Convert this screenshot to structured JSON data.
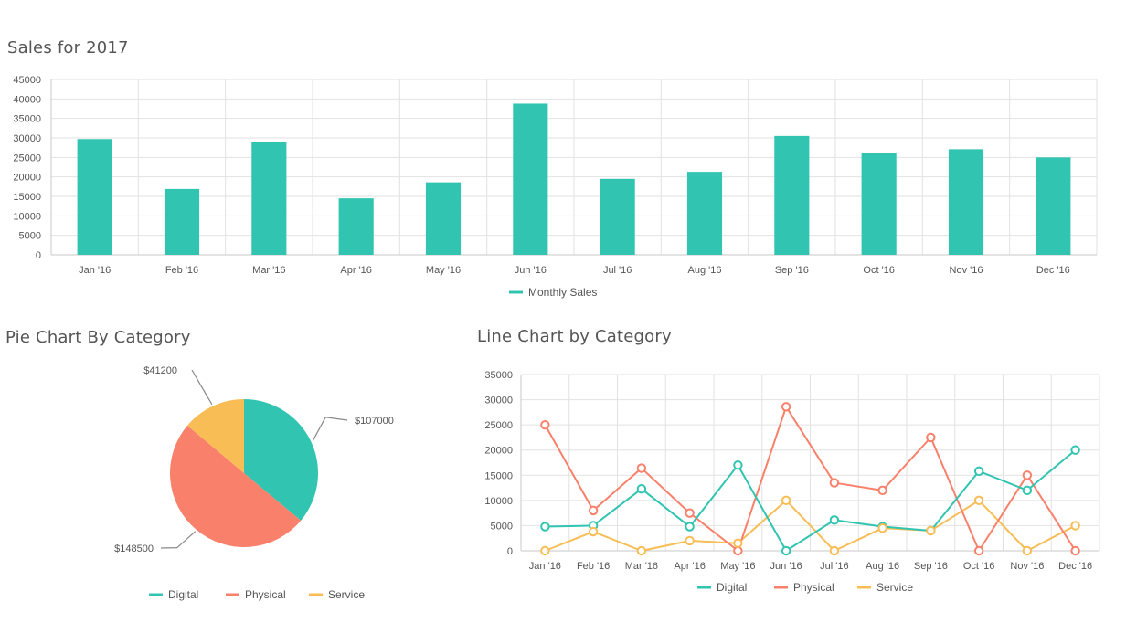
{
  "titles": {
    "bar": "Sales for 2017",
    "pie": "Pie Chart By Category",
    "line": "Line Chart by Category"
  },
  "colors": {
    "digital": "#31c4b1",
    "physical": "#f9806a",
    "service": "#f8bd55",
    "grid": "#e2e2e2",
    "axis": "#c8c8c8"
  },
  "chart_data": [
    {
      "type": "bar",
      "title": "Sales for 2017",
      "categories": [
        "Jan '16",
        "Feb '16",
        "Mar '16",
        "Apr '16",
        "May '16",
        "Jun '16",
        "Jul '16",
        "Aug '16",
        "Sep '16",
        "Oct '16",
        "Nov '16",
        "Dec '16"
      ],
      "series": [
        {
          "name": "Monthly Sales",
          "color": "#31c4b1",
          "values": [
            29700,
            16900,
            29000,
            14500,
            18600,
            38800,
            19500,
            21300,
            30500,
            26200,
            27100,
            25000
          ]
        }
      ],
      "ylim": [
        0,
        45000
      ],
      "yticks": [
        "0",
        "5000",
        "10000",
        "15000",
        "20000",
        "25000",
        "30000",
        "35000",
        "40000",
        "45000"
      ],
      "grid": true,
      "legend": "bottom"
    },
    {
      "type": "pie",
      "title": "Pie Chart By Category",
      "slices": [
        {
          "name": "Digital",
          "value": 107000,
          "label": "$107000",
          "color": "#31c4b1"
        },
        {
          "name": "Physical",
          "value": 148500,
          "label": "$148500",
          "color": "#f9806a"
        },
        {
          "name": "Service",
          "value": 41200,
          "label": "$41200",
          "color": "#f8bd55"
        }
      ],
      "legend": "bottom"
    },
    {
      "type": "line",
      "title": "Line Chart by Category",
      "categories": [
        "Jan '16",
        "Feb '16",
        "Mar '16",
        "Apr '16",
        "May '16",
        "Jun '16",
        "Jul '16",
        "Aug '16",
        "Sep '16",
        "Oct '16",
        "Nov '16",
        "Dec '16"
      ],
      "series": [
        {
          "name": "Digital",
          "color": "#31c4b1",
          "values": [
            4800,
            5000,
            12300,
            4800,
            17000,
            0,
            6100,
            4800,
            4000,
            15800,
            12000,
            20000
          ]
        },
        {
          "name": "Physical",
          "color": "#f9806a",
          "values": [
            25000,
            8000,
            16400,
            7500,
            0,
            28600,
            13500,
            12000,
            22500,
            0,
            15000,
            0
          ]
        },
        {
          "name": "Service",
          "color": "#f8bd55",
          "values": [
            0,
            3800,
            0,
            2000,
            1500,
            10000,
            0,
            4500,
            4000,
            10000,
            0,
            5000
          ]
        }
      ],
      "ylim": [
        0,
        35000
      ],
      "yticks": [
        "0",
        "5000",
        "10000",
        "15000",
        "20000",
        "25000",
        "30000",
        "35000"
      ],
      "grid": true,
      "legend": "bottom"
    }
  ]
}
